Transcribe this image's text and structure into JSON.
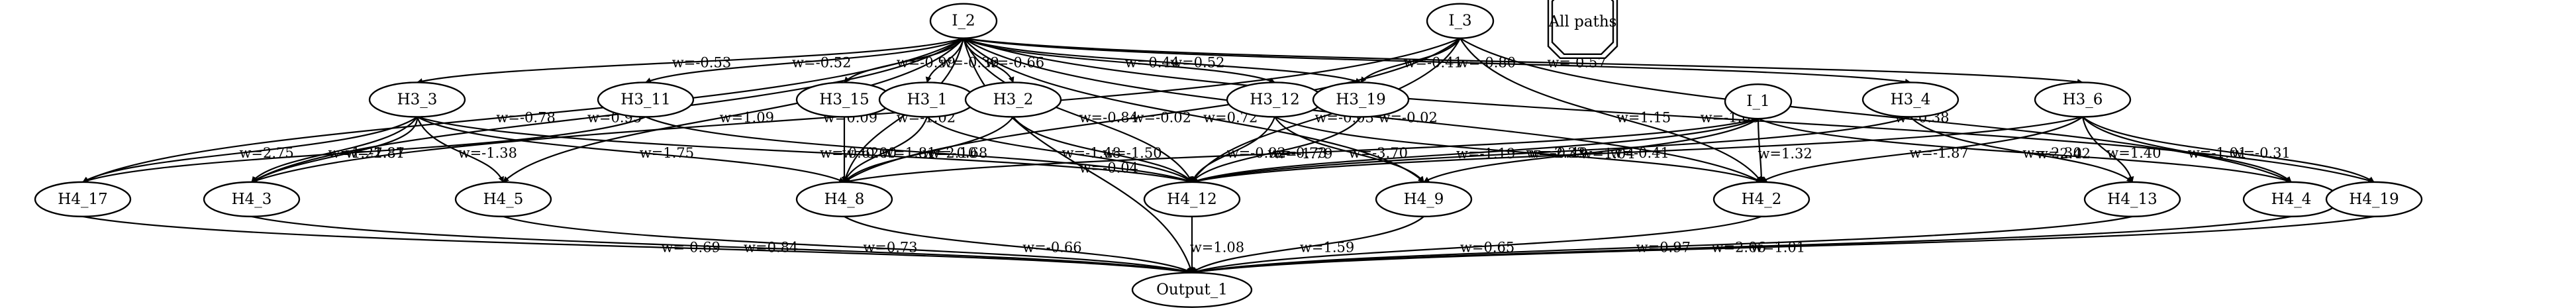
{
  "graph": {
    "nodes": [
      {
        "id": "I_2",
        "label": "I_2",
        "shape": "ellipse"
      },
      {
        "id": "I_3",
        "label": "I_3",
        "shape": "ellipse"
      },
      {
        "id": "I_1",
        "label": "I_1",
        "shape": "ellipse"
      },
      {
        "id": "all_paths",
        "label": "All paths",
        "shape": "octagon"
      },
      {
        "id": "H3_3",
        "label": "H3_3",
        "shape": "ellipse"
      },
      {
        "id": "H3_11",
        "label": "H3_11",
        "shape": "ellipse"
      },
      {
        "id": "H3_15",
        "label": "H3_15",
        "shape": "ellipse"
      },
      {
        "id": "H3_1",
        "label": "H3_1",
        "shape": "ellipse"
      },
      {
        "id": "H3_2",
        "label": "H3_2",
        "shape": "ellipse"
      },
      {
        "id": "H3_12",
        "label": "H3_12",
        "shape": "ellipse"
      },
      {
        "id": "H3_19",
        "label": "H3_19",
        "shape": "ellipse"
      },
      {
        "id": "H3_4",
        "label": "H3_4",
        "shape": "ellipse"
      },
      {
        "id": "H3_6",
        "label": "H3_6",
        "shape": "ellipse"
      },
      {
        "id": "H4_17",
        "label": "H4_17",
        "shape": "ellipse"
      },
      {
        "id": "H4_3",
        "label": "H4_3",
        "shape": "ellipse"
      },
      {
        "id": "H4_5",
        "label": "H4_5",
        "shape": "ellipse"
      },
      {
        "id": "H4_8",
        "label": "H4_8",
        "shape": "ellipse"
      },
      {
        "id": "H4_12",
        "label": "H4_12",
        "shape": "ellipse"
      },
      {
        "id": "H4_9",
        "label": "H4_9",
        "shape": "ellipse"
      },
      {
        "id": "H4_2",
        "label": "H4_2",
        "shape": "ellipse"
      },
      {
        "id": "H4_13",
        "label": "H4_13",
        "shape": "ellipse"
      },
      {
        "id": "H4_4",
        "label": "H4_4",
        "shape": "ellipse"
      },
      {
        "id": "H4_19",
        "label": "H4_19",
        "shape": "ellipse"
      },
      {
        "id": "Output_1",
        "label": "Output_1",
        "shape": "ellipse"
      }
    ],
    "edges": [
      {
        "from": "I_2",
        "to": "H3_3",
        "label": "w=-0.53"
      },
      {
        "from": "I_2",
        "to": "H4_17",
        "label": "w=-0.78"
      },
      {
        "from": "I_2",
        "to": "H4_3",
        "label": "w=0.95"
      },
      {
        "from": "I_2",
        "to": "H3_11",
        "label": "w=-0.52"
      },
      {
        "from": "I_2",
        "to": "H4_5",
        "label": "w=1.09"
      },
      {
        "from": "I_2",
        "to": "H4_8",
        "label": "w=-1.02"
      },
      {
        "from": "I_2",
        "to": "H3_15",
        "label": "w=-0.99"
      },
      {
        "from": "I_2",
        "to": "H3_1",
        "label": "w=-0.39"
      },
      {
        "from": "I_2",
        "to": "H3_2",
        "label": "w=-0.66"
      },
      {
        "from": "I_2",
        "to": "H4_12",
        "label": "w=-0.84"
      },
      {
        "from": "I_2",
        "to": "H3_12",
        "label": "w=0.44"
      },
      {
        "from": "I_2",
        "to": "H3_19",
        "label": "w=0.52"
      },
      {
        "from": "I_2",
        "to": "H4_9",
        "label": "w=0.72"
      },
      {
        "from": "I_2",
        "to": "H3_4",
        "label": "w=-0.80"
      },
      {
        "from": "I_2",
        "to": "H3_6",
        "label": "w=-0.57"
      },
      {
        "from": "I_2",
        "to": "H4_2",
        "label": "w=-0.02"
      },
      {
        "from": "I_2",
        "to": "H4_19",
        "label": "w=-1.08"
      },
      {
        "from": "I_2",
        "to": "Output_1",
        "label": "w=-0.04"
      },
      {
        "from": "I_3",
        "to": "H4_3",
        "label": "w=0.09"
      },
      {
        "from": "I_3",
        "to": "H4_8",
        "label": "w=-0.02"
      },
      {
        "from": "I_3",
        "to": "H3_19",
        "label": "w=-0.41"
      },
      {
        "from": "I_3",
        "to": "H4_12",
        "label": "w=-0.03"
      },
      {
        "from": "I_3",
        "to": "H4_2",
        "label": "w=1.15"
      },
      {
        "from": "I_3",
        "to": "H4_4",
        "label": "w=0.38"
      },
      {
        "from": "H3_3",
        "to": "H4_17",
        "label": "w=2.75"
      },
      {
        "from": "H3_3",
        "to": "H4_3",
        "label": "w=1.27"
      },
      {
        "from": "H3_3",
        "to": "H4_3",
        "label": "w=-1.81"
      },
      {
        "from": "H3_3",
        "to": "H4_5",
        "label": "w=-1.38"
      },
      {
        "from": "H3_3",
        "to": "H4_8",
        "label": "w=1.75"
      },
      {
        "from": "H3_3",
        "to": "H4_12",
        "label": "w=-0.62"
      },
      {
        "from": "H3_11",
        "to": "H4_17",
        "label": "w=-2.87"
      },
      {
        "from": "H3_11",
        "to": "H4_12",
        "label": "w=-0.68"
      },
      {
        "from": "H3_15",
        "to": "H4_8",
        "label": "w=0.00"
      },
      {
        "from": "H3_1",
        "to": "H4_8",
        "label": "w=1.81"
      },
      {
        "from": "H3_1",
        "to": "H4_12",
        "label": "w=-1.48"
      },
      {
        "from": "H3_2",
        "to": "H4_8",
        "label": "w=2.10"
      },
      {
        "from": "H3_2",
        "to": "H4_12",
        "label": "w=-1.50"
      },
      {
        "from": "H3_12",
        "to": "H4_12",
        "label": "w=-0.92"
      },
      {
        "from": "H3_12",
        "to": "H4_9",
        "label": "w=-3.70"
      },
      {
        "from": "H3_12",
        "to": "H4_2",
        "label": "w=-2.33"
      },
      {
        "from": "H3_19",
        "to": "H4_12",
        "label": "w=-0.73"
      },
      {
        "from": "I_1",
        "to": "H4_8",
        "label": "w=-1.79"
      },
      {
        "from": "I_1",
        "to": "H4_12",
        "label": "w=-1.19"
      },
      {
        "from": "I_1",
        "to": "H4_9",
        "label": "w=1.04"
      },
      {
        "from": "I_1",
        "to": "H4_2",
        "label": "w=1.32"
      },
      {
        "from": "I_1",
        "to": "H4_4",
        "label": "w=2.42"
      },
      {
        "from": "H3_4",
        "to": "H4_12",
        "label": "w=-0.49"
      },
      {
        "from": "H3_4",
        "to": "H4_13",
        "label": "w=-2.30"
      },
      {
        "from": "H3_6",
        "to": "H4_12",
        "label": "w=-0.41"
      },
      {
        "from": "H3_6",
        "to": "H4_2",
        "label": "w=-1.87"
      },
      {
        "from": "H3_6",
        "to": "H4_13",
        "label": "w=1.40"
      },
      {
        "from": "H3_6",
        "to": "H4_4",
        "label": "w=-1.01"
      },
      {
        "from": "H3_6",
        "to": "H4_19",
        "label": "w=-0.31"
      },
      {
        "from": "H4_17",
        "to": "Output_1",
        "label": "w=-0.69"
      },
      {
        "from": "H4_5",
        "to": "Output_1",
        "label": "w=0.73"
      },
      {
        "from": "H4_3",
        "to": "Output_1",
        "label": "w=0.84"
      },
      {
        "from": "H4_8",
        "to": "Output_1",
        "label": "w=-0.66"
      },
      {
        "from": "H4_12",
        "to": "Output_1",
        "label": "w=1.08"
      },
      {
        "from": "H4_9",
        "to": "Output_1",
        "label": "w=1.59"
      },
      {
        "from": "H4_2",
        "to": "Output_1",
        "label": "w=0.65"
      },
      {
        "from": "H4_13",
        "to": "Output_1",
        "label": "w=0.97"
      },
      {
        "from": "H4_4",
        "to": "Output_1",
        "label": "w=2.06"
      },
      {
        "from": "H4_19",
        "to": "Output_1",
        "label": "w=1.01"
      }
    ]
  }
}
